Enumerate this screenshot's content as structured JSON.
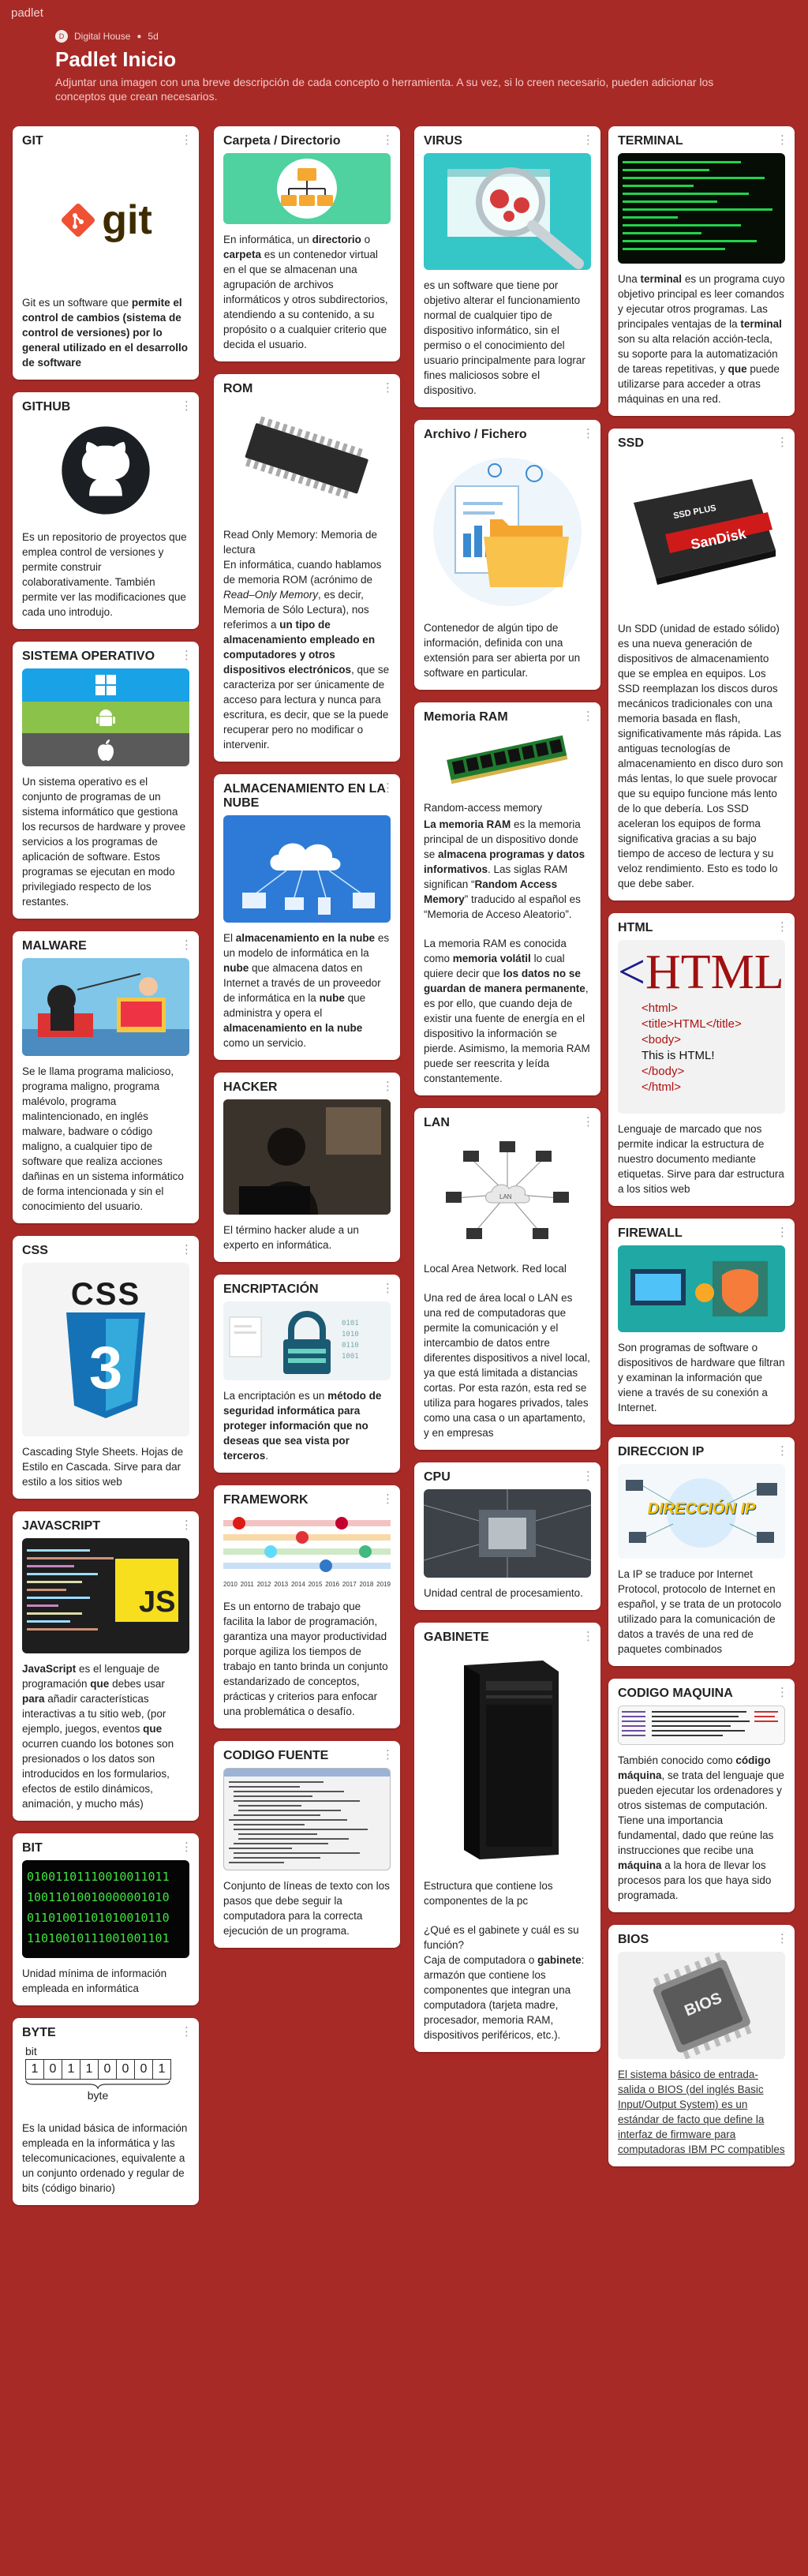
{
  "app": {
    "brand": "padlet"
  },
  "header": {
    "author": "Digital House",
    "author_initial": "D",
    "age": "5d",
    "title": "Padlet Inicio",
    "description": "Adjuntar una imagen con una breve descripción de cada concepto o herramienta. A su vez, si lo creen necesario, pueden adicionar los conceptos que crean necesarios."
  },
  "icons": {
    "menu": "⋮"
  },
  "cards": {
    "git": {
      "title": "GIT",
      "logo_text": "git",
      "t1": "Git es un software que ",
      "b1": "permite el control de cambios (sistema de control de versiones) por lo general utilizado en el desarrollo de software"
    },
    "github": {
      "title": "GITHUB",
      "t1": "Es un repositorio de proyectos que emplea control de versiones y permite construir colaborativamente. También permite ver las modificaciones que cada uno introdujo."
    },
    "so": {
      "title": "SISTEMA OPERATIVO",
      "t1": "Un sistema operativo es el conjunto de programas de un sistema informático que gestiona los recursos de hardware y provee servicios a los programas de aplicación de software. Estos programas se ejecutan en modo privilegiado respecto de los restantes."
    },
    "malware": {
      "title": "MALWARE",
      "t1": "Se le llama programa malicioso, programa maligno, programa malévolo, programa malintencionado, en inglés malware, badware o código maligno, a cualquier tipo de software que realiza acciones dañinas en un sistema informático de forma intencionada y sin el conocimiento del usuario."
    },
    "css": {
      "title": "CSS",
      "logo_text": "CSS",
      "logo_num": "3",
      "t1": "Cascading Style Sheets. Hojas de Estilo en Cascada. Sirve para dar estilo a los sitios web"
    },
    "javascript": {
      "title": "JAVASCRIPT",
      "logo_text": "JS",
      "b1": "JavaScript",
      "t1": " es el lenguaje de programación ",
      "b2": "que",
      "t2": " debes usar ",
      "b3": "para",
      "t3": " añadir características interactivas a tu sitio web, (por ejemplo, juegos, eventos ",
      "b4": "que",
      "t4": " ocurren cuando los botones son presionados o los datos son introducidos en los formularios, efectos de estilo dinámicos, animación, y mucho más)"
    },
    "bit": {
      "title": "BIT",
      "rows": [
        "01001101110010011011",
        "10011010010000001010",
        "01101001101010010110",
        "11010010111001001101"
      ],
      "t1": "Unidad mínima de información empleada en informática"
    },
    "byte": {
      "title": "BYTE",
      "bit_label": "bit",
      "byte_label": "byte",
      "bits": [
        "1",
        "0",
        "1",
        "1",
        "0",
        "0",
        "0",
        "1"
      ],
      "t1": "Es la unidad básica de información empleada en la informática y las telecomunicaciones, equivalente a un conjunto ordenado y regular de bits (código binario)"
    },
    "carpeta": {
      "title": "Carpeta / Directorio",
      "t1": "En informática, un ",
      "b1": "directorio",
      "t2": " o ",
      "b2": "carpeta",
      "t3": " es un contenedor virtual en el que se almacenan una agrupación de archivos informáticos y otros subdirectorios, atendiendo a su contenido, a su propósito o a cualquier criterio que decida el usuario."
    },
    "rom": {
      "title": "ROM",
      "t0": "Read Only Memory: Memoria de lectura",
      "t1": "En informática, cuando hablamos de memoria ROM (acrónimo de ",
      "i1": "Read–Only Memory",
      "t2": ", es decir, Memoria de Sólo Lectura), nos referimos a ",
      "b1": "un tipo de almacenamiento empleado en computadores y otros dispositivos electrónicos",
      "t3": ", que se caracteriza por ser únicamente de acceso para lectura y nunca para escritura, es decir, que se la puede recuperar pero no modificar o intervenir."
    },
    "nube": {
      "title": "ALMACENAMIENTO EN LA NUBE",
      "t1": "El ",
      "b1": "almacenamiento en la nube",
      "t2": " es un modelo de informática en la ",
      "b2": "nube",
      "t3": " que almacena datos en Internet a través de un proveedor de informática en la ",
      "b3": "nube",
      "t4": " que administra y opera el ",
      "b4": "almacenamiento en la nube",
      "t5": " como un servicio."
    },
    "hacker": {
      "title": "HACKER",
      "t1": "El término hacker alude a un experto en informática."
    },
    "encriptacion": {
      "title": "ENCRIPTACIÓN",
      "t1": "La encriptación es un ",
      "b1": "método de seguridad informática para proteger información que no deseas que sea vista por terceros",
      "t2": "."
    },
    "framework": {
      "title": "FRAMEWORK",
      "years": [
        "2010",
        "2011",
        "2012",
        "2013",
        "2014",
        "2015",
        "2016",
        "2017",
        "2018",
        "2019"
      ],
      "t1": "Es un entorno de trabajo que facilita la labor de programación, garantiza una mayor productividad porque agiliza los tiempos de trabajo en tanto brinda un conjunto estandarizado de conceptos, prácticas y criterios para enfocar una problemática o desafío."
    },
    "codigo": {
      "title": "CODIGO FUENTE",
      "t1": "Conjunto de líneas de texto con los pasos que debe seguir la computadora para la correcta ejecución de un programa."
    },
    "virus": {
      "title": "VIRUS",
      "t1": "es un software que tiene por objetivo alterar el funcionamiento normal de cualquier tipo de dispositivo informático, sin el permiso o el conocimiento del usuario principalmente para lograr fines maliciosos sobre el dispositivo."
    },
    "archivo": {
      "title": "Archivo / Fichero",
      "t1": "Contenedor de algún tipo de información, definida con una extensión para ser abierta por un software en particular."
    },
    "ram": {
      "title": "Memoria RAM",
      "t0": "Random-access memory",
      "b1": "La memoria RAM",
      "t1": " es la memoria principal de un dispositivo donde se ",
      "b2": "almacena programas y datos informativos",
      "t2": ". Las siglas RAM significan “",
      "b3": "Random Access Memory",
      "t3": "” traducido al español es “Memoria de Acceso Aleatorio”.",
      "t4": "La memoria RAM es conocida como ",
      "b4": "memoria volátil",
      "t5": " lo cual quiere decir que ",
      "b5": "los datos no se guardan de manera permanente",
      "t6": ", es por ello, que cuando deja de existir una fuente de energía en el dispositivo la información se pierde. Asimismo, la memoria RAM puede ser reescrita y leída constantemente."
    },
    "lan": {
      "title": "LAN",
      "cloud_label": "LAN",
      "t0": "Local Area Network. Red local",
      "t1": "Una red de área local o LAN es una red de computadoras que permite la comunicación y el intercambio de datos entre diferentes dispositivos a nivel local, ya que está limitada a distancias cortas. Por esta razón, esta red se utiliza para hogares privados, tales como una casa o un apartamento, y en empresas"
    },
    "cpu": {
      "title": "CPU",
      "t1": "Unidad central de procesamiento."
    },
    "gabinete": {
      "title": "GABINETE",
      "t0": "Estructura que contiene los componentes de la pc",
      "t1": "¿Qué es el gabinete y cuál es su función?",
      "t2": "Caja de computadora o ",
      "b1": "gabinete",
      "t3": ": armazón que contiene los componentes que integran una computadora (tarjeta madre, procesador, memoria RAM, dispositivos periféricos, etc.)."
    },
    "terminal": {
      "title": "TERMINAL",
      "t1": "Una ",
      "b1": "terminal",
      "t2": " es un programa cuyo objetivo principal es leer comandos y ejecutar otros programas. Las principales ventajas de la ",
      "b2": "terminal",
      "t3": " son su alta relación acción-tecla, su soporte para la automatización de tareas repetitivas, y ",
      "b3": "que",
      "t4": " puede utilizarse para acceder a otras máquinas en una red."
    },
    "ssd": {
      "title": "SSD",
      "label1": "SSD PLUS",
      "label2": "SanDisk",
      "t1": "Un SDD (unidad de estado sólido) es una nueva generación de dispositivos de almacenamiento que se emplea en equipos. Los SSD reemplazan los discos duros mecánicos tradicionales con una memoria basada en flash, significativamente más rápida. Las antiguas tecnologías de almacenamiento en disco duro son más lentas, lo que suele provocar que su equipo funcione más lento de lo que debería. Los SSD aceleran los equipos de forma significativa gracias a su bajo tiempo de acceso de lectura y su veloz rendimiento. Esto es todo lo que debe saber."
    },
    "html": {
      "title": "HTML",
      "logo_text": "HTML",
      "code": [
        "<html>",
        "<title>HTML</title>",
        "<body>",
        "This is HTML!",
        "</body>",
        "</html>"
      ],
      "t1": "Lenguaje de marcado que nos permite indicar la estructura de nuestro documento mediante etiquetas. Sirve para dar estructura a los sitios web"
    },
    "firewall": {
      "title": "FIREWALL",
      "t1": "Son programas de software o dispositivos de hardware que filtran y examinan la información que viene a través de su conexión a Internet."
    },
    "ip": {
      "title": "DIRECCION IP",
      "img_text": "DIRECCIÓN IP",
      "t1": "La IP se traduce por Internet Protocol, protocolo de Internet en español, y se trata de un protocolo utilizado para la comunicación de datos a través de una red de paquetes combinados"
    },
    "maquina": {
      "title": "CODIGO MAQUINA",
      "t1": "También conocido como ",
      "b1": "código máquina",
      "t2": ", se trata del lenguaje que pueden ejecutar los ordenadores y otros sistemas de computación. Tiene una importancia fundamental, dado que reúne las instrucciones que recibe una ",
      "b2": "máquina",
      "t3": " a la hora de llevar los procesos para los que haya sido programada."
    },
    "bios": {
      "title": "BIOS",
      "chip_label": "BIOS",
      "t1": "El sistema básico de entrada-salida o BIOS (del inglés Basic Input/Output System) es un estándar de facto que define la interfaz de firmware para computadoras IBM PC compatibles"
    }
  }
}
